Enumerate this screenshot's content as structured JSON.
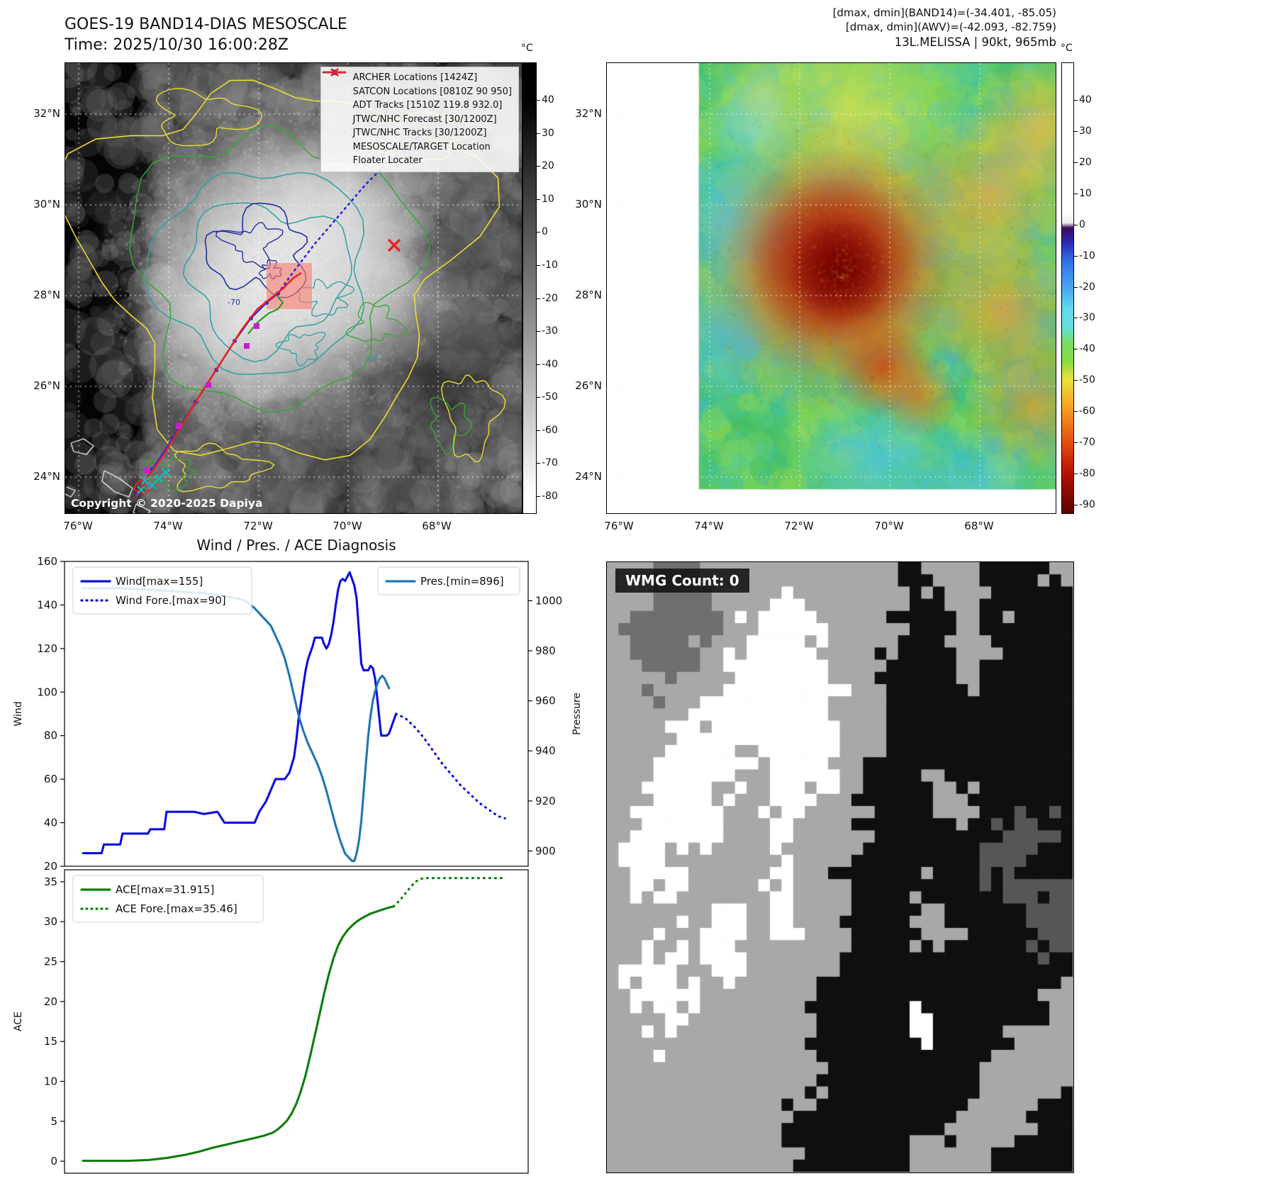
{
  "band14": {
    "title_line1": "GOES-19 BAND14-DIAS MESOSCALE",
    "title_line2": "Time: 2025/10/30 16:00:28Z",
    "copyright": "Copyright © 2020-2025 Dapiya",
    "colorbar_unit": "°C",
    "colorbar_ticks": [
      "40",
      "30",
      "20",
      "10",
      "0",
      "-10",
      "-20",
      "-30",
      "-40",
      "-50",
      "-60",
      "-70",
      "-80"
    ],
    "x_ticks": [
      "76°W",
      "74°W",
      "72°W",
      "70°W",
      "68°W"
    ],
    "y_ticks": [
      "32°N",
      "30°N",
      "28°N",
      "26°N",
      "24°N"
    ],
    "contour_labels": [
      "-70",
      "-64"
    ],
    "legend_items": [
      {
        "marker": "square",
        "color": "#c820c8",
        "label": "ARCHER Locations [1424Z]"
      },
      {
        "marker": "cross",
        "color": "#00c0c0",
        "label": "SATCON Locations [0810Z 90 950]"
      },
      {
        "marker": "line",
        "color": "#23a023",
        "label": "ADT Tracks [1510Z 119.8 932.0]"
      },
      {
        "marker": "dotted-line",
        "color": "#2424e8",
        "label": "JTWC/NHC Forecast [30/1200Z]"
      },
      {
        "marker": "line-dot",
        "color": "#2424e8",
        "label": "JTWC/NHC Tracks [30/1200Z]"
      },
      {
        "marker": "cross",
        "color": "#e82222",
        "label": "MESOSCALE/TARGET Location"
      },
      {
        "marker": "line",
        "color": "#e82222",
        "label": "Floater Locater"
      }
    ]
  },
  "awv": {
    "header_line1": "[dmax, dmin](BAND14)=(-34.401, -85.05)",
    "header_line2": "[dmax, dmin](AWV)=(-42.093, -82.759)",
    "header_line3": "13L.MELISSA | 90kt, 965mb",
    "colorbar_unit": "°C",
    "colorbar_ticks": [
      "40",
      "30",
      "20",
      "10",
      "0",
      "-10",
      "-20",
      "-30",
      "-40",
      "-50",
      "-60",
      "-70",
      "-80",
      "-90"
    ],
    "x_ticks": [
      "76°W",
      "74°W",
      "72°W",
      "70°W",
      "68°W"
    ],
    "y_ticks": [
      "32°N",
      "30°N",
      "28°N",
      "26°N",
      "24°N"
    ]
  },
  "diagnosis": {
    "title": "Wind / Pres. / ACE Diagnosis"
  },
  "wmg": {
    "count_label": "WMG Count: 0"
  },
  "chart_data": [
    {
      "type": "line",
      "title": "Wind / Pres. / ACE Diagnosis",
      "xlabel": "",
      "ylabel": "Wind",
      "y2label": "Pressure",
      "ylim": [
        20,
        160
      ],
      "y2lim": [
        893.9,
        1015.7
      ],
      "yticks": [
        20,
        40,
        60,
        80,
        100,
        120,
        140,
        160
      ],
      "y2ticks": [
        900,
        920,
        940,
        960,
        980,
        1000
      ],
      "xlim": [
        0,
        100
      ],
      "grid": false,
      "series": [
        {
          "name": "Wind[max=155]",
          "style": "solid",
          "color": "#0d0de0",
          "axis": "left",
          "points": [
            [
              4,
              26
            ],
            [
              8,
              26
            ],
            [
              8.5,
              30
            ],
            [
              12,
              30
            ],
            [
              12.5,
              35
            ],
            [
              18,
              35
            ],
            [
              18.5,
              37
            ],
            [
              21.5,
              37
            ],
            [
              22,
              45
            ],
            [
              28,
              45
            ],
            [
              30,
              44
            ],
            [
              33,
              45
            ],
            [
              34.5,
              40
            ],
            [
              41,
              40
            ],
            [
              42,
              45
            ],
            [
              43.5,
              50
            ],
            [
              44.5,
              55
            ],
            [
              45.5,
              60
            ],
            [
              47.5,
              60
            ],
            [
              48.5,
              63
            ],
            [
              49.5,
              70
            ],
            [
              50,
              78
            ],
            [
              50.5,
              88
            ],
            [
              51,
              95
            ],
            [
              51.5,
              103
            ],
            [
              52,
              110
            ],
            [
              52.5,
              115
            ],
            [
              53,
              118
            ],
            [
              53.5,
              121
            ],
            [
              54,
              125
            ],
            [
              55.5,
              125
            ],
            [
              56,
              122
            ],
            [
              56.5,
              120
            ],
            [
              57,
              122
            ],
            [
              57.5,
              126
            ],
            [
              58,
              132
            ],
            [
              58.5,
              140
            ],
            [
              59,
              147
            ],
            [
              59.5,
              151
            ],
            [
              60,
              152
            ],
            [
              60.5,
              151
            ],
            [
              61,
              153
            ],
            [
              61.5,
              155
            ],
            [
              62,
              152
            ],
            [
              62.5,
              149
            ],
            [
              63,
              143
            ],
            [
              63.5,
              128
            ],
            [
              64,
              113
            ],
            [
              64.5,
              110
            ],
            [
              65.5,
              110
            ],
            [
              66,
              112
            ],
            [
              66.5,
              111
            ],
            [
              67,
              106
            ],
            [
              67.5,
              96
            ],
            [
              68,
              86
            ],
            [
              68.3,
              80
            ],
            [
              69.5,
              80
            ],
            [
              70,
              81
            ],
            [
              70.5,
              84
            ],
            [
              71,
              87
            ],
            [
              71.5,
              90
            ]
          ]
        },
        {
          "name": "Wind Fore.[max=90]",
          "style": "dotted",
          "color": "#0d0de0",
          "axis": "left",
          "points": [
            [
              71.5,
              90
            ],
            [
              73.5,
              88
            ],
            [
              75.5,
              84
            ],
            [
              77.5,
              79
            ],
            [
              79.5,
              73
            ],
            [
              81.5,
              67
            ],
            [
              83.5,
              62
            ],
            [
              85.5,
              57
            ],
            [
              87.5,
              53
            ],
            [
              89.5,
              49
            ],
            [
              91.5,
              46
            ],
            [
              93.5,
              43
            ],
            [
              95,
              42
            ]
          ]
        },
        {
          "name": "Pres.[min=896]",
          "style": "solid",
          "color": "#1f77b4",
          "axis": "right",
          "points": [
            [
              4,
              1005
            ],
            [
              12,
              1005
            ],
            [
              22,
              1004
            ],
            [
              30,
              1003
            ],
            [
              34,
              1002
            ],
            [
              37,
              1001
            ],
            [
              39,
              1000
            ],
            [
              41,
              997
            ],
            [
              43,
              993
            ],
            [
              44.5,
              990
            ],
            [
              45.5,
              986
            ],
            [
              46.5,
              982
            ],
            [
              47.5,
              977
            ],
            [
              48.5,
              970
            ],
            [
              49.5,
              962
            ],
            [
              50.5,
              954
            ],
            [
              51.5,
              948
            ],
            [
              52.5,
              943
            ],
            [
              53.5,
              939
            ],
            [
              54.5,
              935
            ],
            [
              55.5,
              930
            ],
            [
              56.5,
              924
            ],
            [
              57.5,
              917
            ],
            [
              58.5,
              910
            ],
            [
              59.5,
              904
            ],
            [
              60.5,
              899
            ],
            [
              61.5,
              897
            ],
            [
              62,
              896
            ],
            [
              62.5,
              896
            ],
            [
              63,
              899
            ],
            [
              63.5,
              904
            ],
            [
              64,
              912
            ],
            [
              64.5,
              923
            ],
            [
              65,
              935
            ],
            [
              65.5,
              946
            ],
            [
              66,
              954
            ],
            [
              66.5,
              960
            ],
            [
              67,
              964
            ],
            [
              67.5,
              967
            ],
            [
              68,
              969
            ],
            [
              68.5,
              970
            ],
            [
              69,
              969
            ],
            [
              69.5,
              967
            ],
            [
              70,
              965
            ]
          ]
        }
      ]
    },
    {
      "type": "line",
      "xlabel": "",
      "ylabel": "ACE",
      "ylim": [
        -1.5,
        36.5
      ],
      "yticks": [
        0,
        5,
        10,
        15,
        20,
        25,
        30,
        35
      ],
      "xlim": [
        0,
        100
      ],
      "grid": false,
      "series": [
        {
          "name": "ACE[max=31.915]",
          "style": "solid",
          "color": "#0c7d0c",
          "axis": "left",
          "points": [
            [
              4,
              0.05
            ],
            [
              14,
              0.05
            ],
            [
              18,
              0.15
            ],
            [
              22,
              0.4
            ],
            [
              26,
              0.8
            ],
            [
              29,
              1.2
            ],
            [
              32,
              1.7
            ],
            [
              35,
              2.1
            ],
            [
              38,
              2.5
            ],
            [
              41,
              2.9
            ],
            [
              43,
              3.2
            ],
            [
              45,
              3.6
            ],
            [
              46,
              4.0
            ],
            [
              47,
              4.5
            ],
            [
              48,
              5.1
            ],
            [
              49,
              6.0
            ],
            [
              50,
              7.2
            ],
            [
              51,
              8.8
            ],
            [
              52,
              10.8
            ],
            [
              53,
              13.2
            ],
            [
              54,
              15.8
            ],
            [
              55,
              18.4
            ],
            [
              56,
              21.0
            ],
            [
              57,
              23.4
            ],
            [
              58,
              25.4
            ],
            [
              59,
              27.0
            ],
            [
              60,
              28.1
            ],
            [
              61,
              28.9
            ],
            [
              62,
              29.5
            ],
            [
              63,
              30.0
            ],
            [
              64,
              30.4
            ],
            [
              65,
              30.7
            ],
            [
              66,
              31.0
            ],
            [
              67,
              31.2
            ],
            [
              68,
              31.4
            ],
            [
              69,
              31.6
            ],
            [
              70,
              31.78
            ],
            [
              71,
              31.915
            ]
          ]
        },
        {
          "name": "ACE Fore.[max=35.46]",
          "style": "dotted",
          "color": "#0c7d0c",
          "axis": "left",
          "points": [
            [
              71,
              31.915
            ],
            [
              72.5,
              32.8
            ],
            [
              74,
              33.9
            ],
            [
              75.5,
              34.9
            ],
            [
              76.5,
              35.3
            ],
            [
              77.5,
              35.46
            ],
            [
              80,
              35.46
            ],
            [
              84,
              35.46
            ],
            [
              88,
              35.46
            ],
            [
              92,
              35.46
            ],
            [
              95,
              35.46
            ]
          ]
        }
      ]
    }
  ]
}
